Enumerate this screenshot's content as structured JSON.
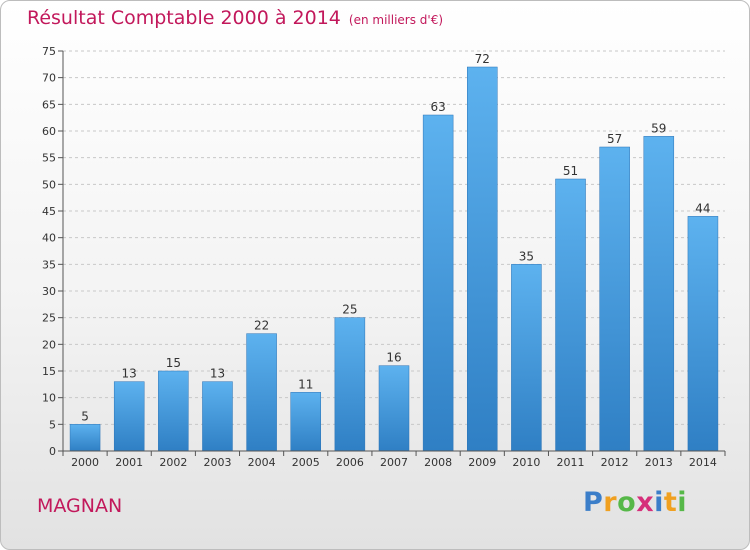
{
  "chart_data": {
    "type": "bar",
    "title": "Résultat Comptable 2000 à 2014",
    "subtitle": "(en milliers d'€)",
    "categories": [
      "2000",
      "2001",
      "2002",
      "2003",
      "2004",
      "2005",
      "2006",
      "2007",
      "2008",
      "2009",
      "2010",
      "2011",
      "2012",
      "2013",
      "2014"
    ],
    "values": [
      5,
      13,
      15,
      13,
      22,
      11,
      25,
      16,
      63,
      72,
      35,
      51,
      57,
      59,
      44
    ],
    "ylim": [
      0,
      75
    ],
    "yticks": [
      0,
      5,
      10,
      15,
      20,
      25,
      30,
      35,
      40,
      45,
      50,
      55,
      60,
      65,
      70,
      75
    ],
    "xlabel": "",
    "ylabel": "",
    "grid": true,
    "bar_color": "#3f9ee6"
  },
  "location": "MAGNAN",
  "logo": {
    "letters": [
      "P",
      "r",
      "o",
      "x",
      "i",
      "t",
      "i"
    ],
    "colors": [
      "#3b7ec9",
      "#f0a020",
      "#56b848",
      "#d62f7a",
      "#3b7ec9",
      "#f0a020",
      "#56b848"
    ]
  }
}
